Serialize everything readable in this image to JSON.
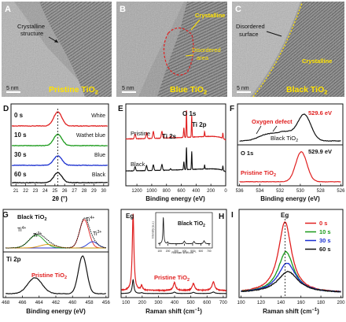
{
  "tem": [
    {
      "letter": "A",
      "label": "Pristine TiO",
      "sub": "2",
      "annot": [
        "Crystalline",
        "structure"
      ],
      "scale": "5 nm"
    },
    {
      "letter": "B",
      "label": "Blue  TiO",
      "sub": "2",
      "annot_cryst": "Crystalline",
      "annot_dis": [
        "Disordered",
        "area"
      ],
      "scale": "5 nm"
    },
    {
      "letter": "C",
      "label": "Black  TiO",
      "sub": "2",
      "annot_dis": [
        "Disordered",
        "surface"
      ],
      "annot_cryst": "Crystalline",
      "scale": "5 nm"
    }
  ],
  "panelD": {
    "letter": "D",
    "xlabel": "2θ (°)",
    "ticks": [
      "21",
      "22",
      "23",
      "24",
      "25",
      "26",
      "27",
      "28",
      "29",
      "30"
    ],
    "times": [
      "0 s",
      "10 s",
      "30 s",
      "60 s"
    ],
    "names": [
      "White",
      "Wathet blue",
      "Blue",
      "Black"
    ],
    "colors": [
      "#e02020",
      "#1a9a1a",
      "#1a2fd0",
      "#111111"
    ]
  },
  "panelE": {
    "letter": "E",
    "xlabel": "Binding energy (eV)",
    "ticks": [
      "1200",
      "1000",
      "800",
      "600",
      "400",
      "200",
      "0"
    ],
    "labels": {
      "o1s": "O 1s",
      "ti2p": "Ti 2p",
      "ti2s": "Ti 2s",
      "pristine": "Pristine",
      "black": "Black"
    }
  },
  "panelF": {
    "letter": "F",
    "xlabel": "Binding energy (eV)",
    "ticks": [
      "536",
      "534",
      "532",
      "530",
      "528",
      "526"
    ],
    "peak_black": "529.6 eV",
    "peak_pristine": "529.9 eV",
    "defect": "Oxygen defect",
    "black_label": "Black TiO",
    "pristine_label": "Pristine TiO",
    "sub": "2",
    "o1s": "O 1s"
  },
  "panelG": {
    "letter": "G",
    "xlabel": "Binding energy (eV)",
    "ticks": [
      "468",
      "466",
      "464",
      "462",
      "460",
      "458",
      "456"
    ],
    "black_label": "Black TiO",
    "pristine_label": "Pristine TiO",
    "sub": "2",
    "ti4": "Ti",
    "ti4_sup": "4+",
    "ti3_sup": "3+",
    "ti2p": "Ti 2p"
  },
  "panelH": {
    "letter": "H",
    "xlabel": "Raman shift (cm",
    "xlabel_sup": "−1",
    "xlabel_end": ")",
    "ticks": [
      "100",
      "200",
      "300",
      "400",
      "500",
      "600",
      "700"
    ],
    "eg": "Eg",
    "pristine_label": "Pristine TiO",
    "sub": "2",
    "inset": {
      "title": "Black TiO",
      "ylabel": "Intensity (a.u.)",
      "xlabel": "Raman shift.cm",
      "xlabel_sup": "−1",
      "ticks": [
        "100",
        "200",
        "300",
        "400",
        "500",
        "600",
        "700"
      ]
    }
  },
  "panelI": {
    "letter": "I",
    "xlabel": "Raman shift (cm",
    "xlabel_sup": "−1",
    "xlabel_end": ")",
    "ticks": [
      "100",
      "120",
      "140",
      "160",
      "180",
      "200"
    ],
    "eg": "Eg",
    "legend": [
      "0 s",
      "10 s",
      "30 s",
      "60 s"
    ],
    "colors": [
      "#e02020",
      "#1a9a1a",
      "#1a2fd0",
      "#111111"
    ]
  },
  "chart_data": [
    {
      "type": "line",
      "panel": "D",
      "xlabel": "2θ (°)",
      "xlim": [
        20.5,
        30.5
      ],
      "series": [
        {
          "name": "0 s",
          "peak_x": 25.3,
          "peak_height": 1.0
        },
        {
          "name": "10 s",
          "peak_x": 25.3,
          "peak_height": 0.85
        },
        {
          "name": "30 s",
          "peak_x": 25.3,
          "peak_height": 0.75
        },
        {
          "name": "60 s",
          "peak_x": 25.3,
          "peak_height": 0.7
        }
      ]
    },
    {
      "type": "line",
      "panel": "E",
      "xlabel": "Binding energy (eV)",
      "xlim": [
        1350,
        0
      ],
      "peaks": [
        {
          "label": "O 1s",
          "x": 530
        },
        {
          "label": "Ti 2p",
          "x": 459
        },
        {
          "label": "Ti 2s",
          "x": 565
        }
      ]
    },
    {
      "type": "line",
      "panel": "F",
      "xlabel": "Binding energy (eV)",
      "xlim": [
        536,
        526
      ],
      "series": [
        {
          "name": "Black TiO2",
          "peak_x": 529.6
        },
        {
          "name": "Pristine TiO2",
          "peak_x": 529.9
        }
      ]
    },
    {
      "type": "line",
      "panel": "G",
      "xlabel": "Binding energy (eV)",
      "xlim": [
        468,
        456
      ],
      "series": [
        {
          "name": "Black TiO2",
          "peaks": [
            464.3,
            458.6
          ]
        },
        {
          "name": "Pristine TiO2",
          "peaks": [
            464.5,
            458.8
          ]
        }
      ]
    },
    {
      "type": "line",
      "panel": "H",
      "xlabel": "Raman shift (cm−1)",
      "xlim": [
        70,
        700
      ],
      "peaks": [
        {
          "label": "Eg",
          "x": 144
        },
        {
          "x": 197
        },
        {
          "x": 399
        },
        {
          "x": 516
        },
        {
          "x": 639
        }
      ]
    },
    {
      "type": "line",
      "panel": "I",
      "xlabel": "Raman shift (cm−1)",
      "xlim": [
        100,
        200
      ],
      "series": [
        {
          "name": "0 s",
          "peak_x": 144,
          "peak_height": 1.0
        },
        {
          "name": "10 s",
          "peak_x": 145,
          "peak_height": 0.58
        },
        {
          "name": "30 s",
          "peak_x": 146,
          "peak_height": 0.42
        },
        {
          "name": "60 s",
          "peak_x": 147,
          "peak_height": 0.3
        }
      ]
    }
  ]
}
